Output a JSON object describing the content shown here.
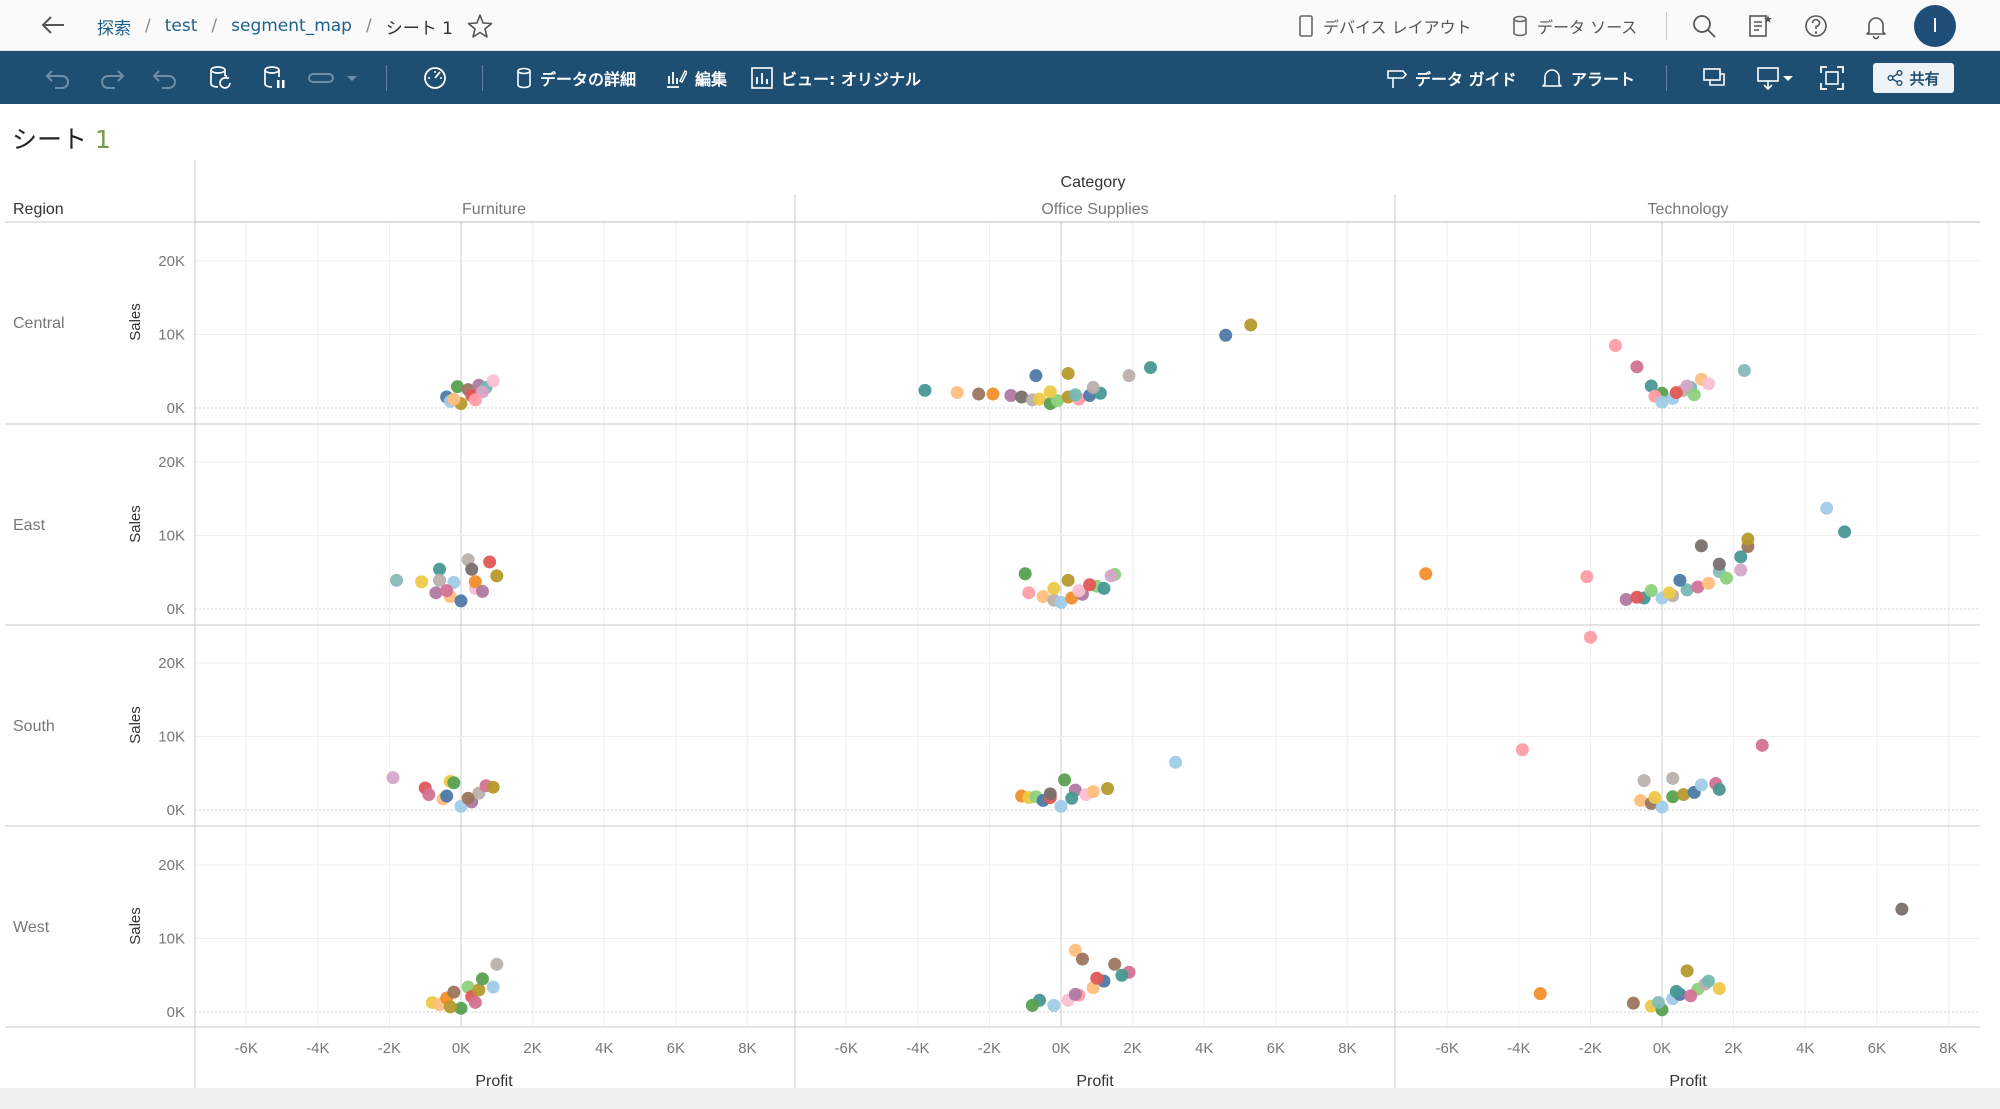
{
  "nav": {
    "breadcrumb": [
      "探索",
      "test",
      "segment_map"
    ],
    "current": "シート 1",
    "device_layout": "デバイス レイアウト",
    "data_source": "データ ソース",
    "avatar_initial": "I"
  },
  "toolbar": {
    "data_details": "データの詳細",
    "edit": "編集",
    "view": "ビュー: オリジナル",
    "data_guide": "データ ガイド",
    "alert": "アラート",
    "share": "共有"
  },
  "sheet": {
    "title": "シート ",
    "number": "1"
  },
  "chart_data": {
    "type": "scatter",
    "column_header": "Category",
    "row_header": "Region",
    "categories": [
      "Furniture",
      "Office Supplies",
      "Technology"
    ],
    "regions": [
      "Central",
      "East",
      "South",
      "West"
    ],
    "xlabel": "Profit",
    "ylabel": "Sales",
    "xlim": [
      -7000,
      8500
    ],
    "ylim": [
      -1000,
      23000
    ],
    "xticks": [
      -6000,
      -4000,
      -2000,
      0,
      2000,
      4000,
      6000,
      8000
    ],
    "xtick_labels": [
      "-6K",
      "-4K",
      "-2K",
      "0K",
      "2K",
      "4K",
      "6K",
      "8K"
    ],
    "yticks": [
      0,
      10000,
      20000
    ],
    "ytick_labels": [
      "0K",
      "10K",
      "20K"
    ],
    "palette": [
      "#4e79a7",
      "#f28e2b",
      "#e15759",
      "#76b7b2",
      "#59a14f",
      "#edc948",
      "#b07aa1",
      "#ff9da7",
      "#9c755f",
      "#bab0ac",
      "#a0cbe8",
      "#ffbe7d",
      "#8cd17d",
      "#b6992d",
      "#86bcb6",
      "#d37295",
      "#fabfd2",
      "#79706e",
      "#d4a6c8",
      "#499894"
    ],
    "panels": [
      {
        "region": "Central",
        "category": "Furniture",
        "points": [
          [
            -400,
            1500,
            0
          ],
          [
            -100,
            2900,
            4
          ],
          [
            200,
            2500,
            8
          ],
          [
            500,
            3100,
            6
          ],
          [
            700,
            2800,
            3
          ],
          [
            900,
            3700,
            16
          ],
          [
            -300,
            900,
            10
          ],
          [
            0,
            600,
            13
          ],
          [
            300,
            1700,
            2
          ],
          [
            600,
            2200,
            18
          ],
          [
            -200,
            1200,
            11
          ],
          [
            400,
            1100,
            7
          ]
        ]
      },
      {
        "region": "Central",
        "category": "Office Supplies",
        "points": [
          [
            -3800,
            2400,
            19
          ],
          [
            -2900,
            2100,
            11
          ],
          [
            -2300,
            1900,
            8
          ],
          [
            -1900,
            1900,
            1
          ],
          [
            -1400,
            1700,
            6
          ],
          [
            -1100,
            1500,
            17
          ],
          [
            -800,
            1100,
            9
          ],
          [
            -600,
            1200,
            5
          ],
          [
            -300,
            600,
            4
          ],
          [
            -100,
            1000,
            12
          ],
          [
            200,
            1500,
            13
          ],
          [
            500,
            1200,
            7
          ],
          [
            800,
            1700,
            0
          ],
          [
            1100,
            2000,
            19
          ],
          [
            -700,
            4400,
            0
          ],
          [
            200,
            4700,
            13
          ],
          [
            1900,
            4400,
            9
          ],
          [
            2500,
            5500,
            19
          ],
          [
            4600,
            9900,
            0
          ],
          [
            5300,
            11300,
            13
          ],
          [
            -300,
            2200,
            5
          ],
          [
            400,
            1800,
            3
          ],
          [
            900,
            2800,
            9
          ]
        ]
      },
      {
        "region": "Central",
        "category": "Technology",
        "points": [
          [
            -1300,
            8500,
            7
          ],
          [
            -700,
            5600,
            15
          ],
          [
            2300,
            5100,
            14
          ],
          [
            -300,
            3000,
            19
          ],
          [
            0,
            2000,
            4
          ],
          [
            300,
            1300,
            10
          ],
          [
            600,
            2400,
            9
          ],
          [
            800,
            2800,
            3
          ],
          [
            1100,
            3900,
            11
          ],
          [
            1300,
            3300,
            16
          ],
          [
            -200,
            1600,
            7
          ],
          [
            400,
            2100,
            2
          ],
          [
            700,
            3000,
            18
          ],
          [
            0,
            800,
            10
          ],
          [
            900,
            1800,
            12
          ]
        ]
      },
      {
        "region": "East",
        "category": "Furniture",
        "points": [
          [
            -1800,
            3900,
            14
          ],
          [
            -1100,
            3700,
            5
          ],
          [
            -600,
            5400,
            19
          ],
          [
            -600,
            3900,
            9
          ],
          [
            -700,
            2200,
            6
          ],
          [
            -300,
            1700,
            11
          ],
          [
            0,
            1100,
            0
          ],
          [
            400,
            2800,
            16
          ],
          [
            200,
            6700,
            9
          ],
          [
            300,
            5400,
            17
          ],
          [
            800,
            6400,
            2
          ],
          [
            1000,
            4500,
            13
          ],
          [
            400,
            3700,
            1
          ],
          [
            600,
            2400,
            6
          ],
          [
            -200,
            3600,
            10
          ],
          [
            -400,
            2500,
            15
          ]
        ]
      },
      {
        "region": "East",
        "category": "Office Supplies",
        "points": [
          [
            -1000,
            4800,
            4
          ],
          [
            200,
            3900,
            13
          ],
          [
            1500,
            4700,
            12
          ],
          [
            -900,
            2200,
            7
          ],
          [
            -500,
            1700,
            11
          ],
          [
            -200,
            1200,
            9
          ],
          [
            0,
            900,
            10
          ],
          [
            300,
            1500,
            1
          ],
          [
            600,
            2000,
            6
          ],
          [
            1000,
            3100,
            12
          ],
          [
            1200,
            2800,
            19
          ],
          [
            1400,
            4500,
            18
          ],
          [
            -200,
            2800,
            5
          ],
          [
            500,
            2500,
            16
          ],
          [
            800,
            3300,
            2
          ]
        ]
      },
      {
        "region": "East",
        "category": "Technology",
        "points": [
          [
            -6600,
            4800,
            1
          ],
          [
            -2100,
            4400,
            7
          ],
          [
            -1000,
            1300,
            6
          ],
          [
            -500,
            1500,
            19
          ],
          [
            -700,
            1600,
            2
          ],
          [
            -300,
            2500,
            12
          ],
          [
            0,
            1500,
            10
          ],
          [
            300,
            1800,
            9
          ],
          [
            700,
            2600,
            3
          ],
          [
            1000,
            3000,
            15
          ],
          [
            1300,
            3500,
            11
          ],
          [
            1600,
            5100,
            14
          ],
          [
            2200,
            5300,
            18
          ],
          [
            2400,
            8500,
            8
          ],
          [
            2200,
            7100,
            19
          ],
          [
            2400,
            9500,
            13
          ],
          [
            1100,
            8600,
            17
          ],
          [
            1600,
            6100,
            17
          ],
          [
            4600,
            13700,
            10
          ],
          [
            5100,
            10500,
            19
          ],
          [
            500,
            3900,
            0
          ],
          [
            1800,
            4200,
            12
          ],
          [
            200,
            2200,
            5
          ]
        ]
      },
      {
        "region": "South",
        "category": "Furniture",
        "points": [
          [
            -1900,
            4400,
            18
          ],
          [
            -1000,
            3000,
            2
          ],
          [
            -900,
            2100,
            15
          ],
          [
            -500,
            1500,
            11
          ],
          [
            -300,
            3900,
            5
          ],
          [
            -200,
            3700,
            4
          ],
          [
            0,
            500,
            10
          ],
          [
            300,
            1100,
            6
          ],
          [
            500,
            2300,
            9
          ],
          [
            700,
            3300,
            15
          ],
          [
            900,
            3100,
            13
          ],
          [
            -400,
            1900,
            0
          ],
          [
            200,
            1600,
            8
          ]
        ]
      },
      {
        "region": "South",
        "category": "Office Supplies",
        "points": [
          [
            -1100,
            1900,
            1
          ],
          [
            -900,
            1700,
            5
          ],
          [
            -700,
            1800,
            12
          ],
          [
            -500,
            1300,
            0
          ],
          [
            -300,
            1700,
            2
          ],
          [
            0,
            500,
            10
          ],
          [
            100,
            4100,
            4
          ],
          [
            400,
            2700,
            6
          ],
          [
            700,
            2100,
            16
          ],
          [
            1300,
            2900,
            13
          ],
          [
            3200,
            6500,
            10
          ],
          [
            -300,
            2200,
            17
          ],
          [
            300,
            1600,
            19
          ],
          [
            900,
            2500,
            11
          ]
        ]
      },
      {
        "region": "South",
        "category": "Technology",
        "points": [
          [
            -3900,
            8200,
            7
          ],
          [
            -2000,
            23500,
            7
          ],
          [
            2800,
            8800,
            15
          ],
          [
            -500,
            4000,
            9
          ],
          [
            300,
            4300,
            9
          ],
          [
            -600,
            1300,
            11
          ],
          [
            -300,
            900,
            8
          ],
          [
            0,
            400,
            10
          ],
          [
            300,
            1800,
            4
          ],
          [
            600,
            2100,
            13
          ],
          [
            900,
            2400,
            0
          ],
          [
            1100,
            3400,
            10
          ],
          [
            1500,
            3600,
            15
          ],
          [
            1600,
            2800,
            19
          ],
          [
            -200,
            1700,
            5
          ]
        ]
      },
      {
        "region": "West",
        "category": "Office Supplies",
        "points": [
          [
            400,
            8400,
            11
          ],
          [
            600,
            7200,
            8
          ],
          [
            1500,
            6500,
            8
          ],
          [
            1900,
            5400,
            15
          ],
          [
            1700,
            5000,
            19
          ],
          [
            1200,
            4200,
            0
          ],
          [
            -600,
            1600,
            19
          ],
          [
            -200,
            900,
            10
          ],
          [
            200,
            1600,
            16
          ],
          [
            500,
            2300,
            7
          ],
          [
            900,
            3300,
            11
          ],
          [
            -800,
            900,
            4
          ],
          [
            400,
            2400,
            6
          ],
          [
            1000,
            4600,
            2
          ]
        ]
      },
      {
        "region": "West",
        "category": "Furniture",
        "points": [
          [
            -800,
            1300,
            5
          ],
          [
            -600,
            1000,
            11
          ],
          [
            -400,
            1900,
            1
          ],
          [
            -200,
            2700,
            8
          ],
          [
            0,
            500,
            4
          ],
          [
            200,
            3400,
            12
          ],
          [
            300,
            2100,
            2
          ],
          [
            500,
            3000,
            13
          ],
          [
            600,
            4500,
            4
          ],
          [
            900,
            3400,
            10
          ],
          [
            1000,
            6500,
            9
          ],
          [
            -300,
            700,
            13
          ],
          [
            400,
            1300,
            15
          ]
        ]
      },
      {
        "region": "West",
        "category": "Technology",
        "points": [
          [
            -3400,
            2500,
            1
          ],
          [
            -800,
            1200,
            8
          ],
          [
            -300,
            800,
            5
          ],
          [
            0,
            300,
            4
          ],
          [
            300,
            1800,
            10
          ],
          [
            500,
            2400,
            0
          ],
          [
            700,
            5600,
            13
          ],
          [
            1000,
            3100,
            12
          ],
          [
            1200,
            3800,
            9
          ],
          [
            1600,
            3200,
            5
          ],
          [
            6700,
            14000,
            17
          ],
          [
            -100,
            1300,
            14
          ],
          [
            400,
            2800,
            19
          ],
          [
            800,
            2200,
            15
          ],
          [
            1300,
            4200,
            3
          ]
        ]
      }
    ]
  }
}
